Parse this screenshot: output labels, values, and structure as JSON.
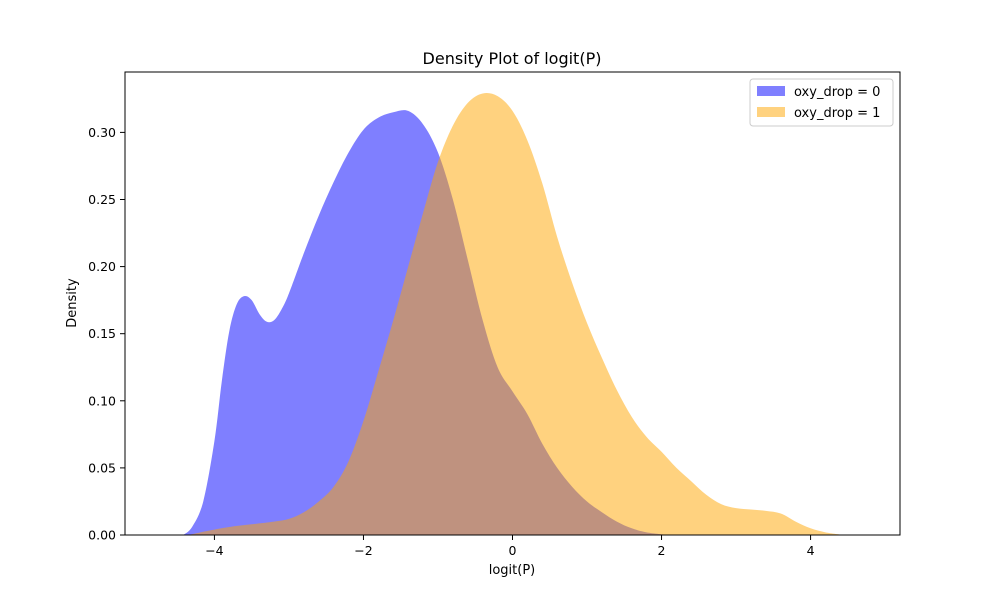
{
  "chart_data": {
    "type": "area",
    "title": "Density Plot of logit(P)",
    "xlabel": "logit(P)",
    "ylabel": "Density",
    "xlim": [
      -5.2,
      5.2
    ],
    "ylim": [
      0,
      0.345
    ],
    "x_ticks": [
      -4,
      -2,
      0,
      2,
      4
    ],
    "x_tick_labels": [
      "−4",
      "−2",
      "0",
      "2",
      "4"
    ],
    "y_ticks": [
      0.0,
      0.05,
      0.1,
      0.15,
      0.2,
      0.25,
      0.3
    ],
    "y_tick_labels": [
      "0.00",
      "0.05",
      "0.10",
      "0.15",
      "0.20",
      "0.25",
      "0.30"
    ],
    "grid": false,
    "legend_position": "top-right",
    "series": [
      {
        "name": "oxy_drop = 0",
        "color": "#0000ff",
        "opacity": 0.5,
        "points": [
          [
            -4.42,
            0.0
          ],
          [
            -4.3,
            0.006
          ],
          [
            -4.15,
            0.025
          ],
          [
            -4.0,
            0.07
          ],
          [
            -3.9,
            0.115
          ],
          [
            -3.8,
            0.152
          ],
          [
            -3.7,
            0.172
          ],
          [
            -3.6,
            0.178
          ],
          [
            -3.5,
            0.175
          ],
          [
            -3.4,
            0.165
          ],
          [
            -3.3,
            0.159
          ],
          [
            -3.2,
            0.16
          ],
          [
            -3.1,
            0.168
          ],
          [
            -3.0,
            0.18
          ],
          [
            -2.8,
            0.21
          ],
          [
            -2.6,
            0.238
          ],
          [
            -2.4,
            0.263
          ],
          [
            -2.2,
            0.285
          ],
          [
            -2.0,
            0.302
          ],
          [
            -1.8,
            0.311
          ],
          [
            -1.6,
            0.315
          ],
          [
            -1.4,
            0.316
          ],
          [
            -1.2,
            0.306
          ],
          [
            -1.0,
            0.285
          ],
          [
            -0.8,
            0.25
          ],
          [
            -0.6,
            0.205
          ],
          [
            -0.4,
            0.16
          ],
          [
            -0.2,
            0.125
          ],
          [
            0.0,
            0.107
          ],
          [
            0.2,
            0.09
          ],
          [
            0.4,
            0.068
          ],
          [
            0.6,
            0.05
          ],
          [
            0.8,
            0.036
          ],
          [
            1.0,
            0.025
          ],
          [
            1.2,
            0.017
          ],
          [
            1.4,
            0.01
          ],
          [
            1.6,
            0.005
          ],
          [
            1.8,
            0.002
          ],
          [
            2.1,
            0.0
          ]
        ]
      },
      {
        "name": "oxy_drop = 1",
        "color": "#ffa500",
        "opacity": 0.5,
        "points": [
          [
            -4.35,
            0.0
          ],
          [
            -4.1,
            0.003
          ],
          [
            -3.8,
            0.006
          ],
          [
            -3.5,
            0.008
          ],
          [
            -3.2,
            0.01
          ],
          [
            -3.0,
            0.012
          ],
          [
            -2.8,
            0.017
          ],
          [
            -2.6,
            0.025
          ],
          [
            -2.4,
            0.036
          ],
          [
            -2.2,
            0.055
          ],
          [
            -2.0,
            0.085
          ],
          [
            -1.8,
            0.122
          ],
          [
            -1.6,
            0.16
          ],
          [
            -1.4,
            0.2
          ],
          [
            -1.2,
            0.24
          ],
          [
            -1.0,
            0.278
          ],
          [
            -0.8,
            0.305
          ],
          [
            -0.6,
            0.322
          ],
          [
            -0.4,
            0.329
          ],
          [
            -0.2,
            0.327
          ],
          [
            0.0,
            0.316
          ],
          [
            0.2,
            0.294
          ],
          [
            0.4,
            0.262
          ],
          [
            0.6,
            0.222
          ],
          [
            0.8,
            0.188
          ],
          [
            1.0,
            0.158
          ],
          [
            1.2,
            0.132
          ],
          [
            1.4,
            0.108
          ],
          [
            1.6,
            0.088
          ],
          [
            1.8,
            0.073
          ],
          [
            2.0,
            0.062
          ],
          [
            2.2,
            0.05
          ],
          [
            2.4,
            0.04
          ],
          [
            2.6,
            0.03
          ],
          [
            2.8,
            0.023
          ],
          [
            3.0,
            0.02
          ],
          [
            3.2,
            0.019
          ],
          [
            3.4,
            0.018
          ],
          [
            3.6,
            0.016
          ],
          [
            3.8,
            0.01
          ],
          [
            4.0,
            0.005
          ],
          [
            4.2,
            0.002
          ],
          [
            4.45,
            0.0
          ]
        ]
      }
    ]
  }
}
